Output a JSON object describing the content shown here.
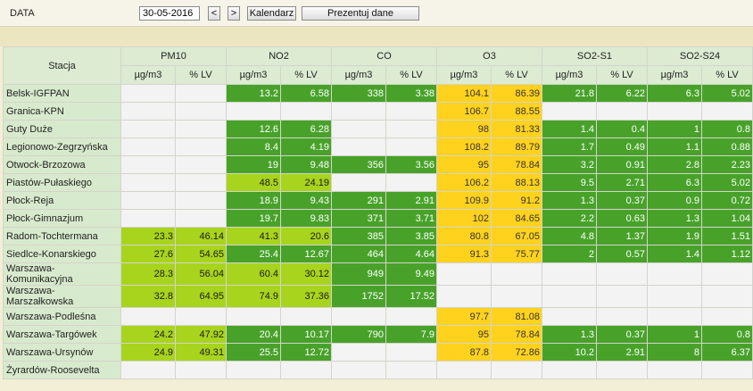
{
  "toolbar": {
    "date_label": "DATA",
    "date_value": "30-05-2016",
    "prev_label": "<",
    "next_label": ">",
    "calendar_label": "Kalendarz",
    "show_label": "Prezentuj dane"
  },
  "table": {
    "station_header": "Stacja",
    "pollutants": [
      "PM10",
      "NO2",
      "CO",
      "O3",
      "SO2-S1",
      "SO2-S24"
    ],
    "units": [
      "µg/m3",
      "% LV"
    ],
    "rows": [
      {
        "name": "Belsk-IGFPAN",
        "cells": [
          [
            "",
            ""
          ],
          [
            "13.2",
            "6.58"
          ],
          [
            "338",
            "3.38"
          ],
          [
            "104.1",
            "86.39"
          ],
          [
            "21.8",
            "6.22"
          ],
          [
            "6.3",
            "5.02"
          ]
        ]
      },
      {
        "name": "Granica-KPN",
        "cells": [
          [
            "",
            ""
          ],
          [
            "",
            ""
          ],
          [
            "",
            ""
          ],
          [
            "106.7",
            "88.55"
          ],
          [
            "",
            ""
          ],
          [
            "",
            ""
          ]
        ]
      },
      {
        "name": "Guty Duże",
        "cells": [
          [
            "",
            ""
          ],
          [
            "12.6",
            "6.28"
          ],
          [
            "",
            ""
          ],
          [
            "98",
            "81.33"
          ],
          [
            "1.4",
            "0.4"
          ],
          [
            "1",
            "0.8"
          ]
        ]
      },
      {
        "name": "Legionowo-Zegrzyńska",
        "cells": [
          [
            "",
            ""
          ],
          [
            "8.4",
            "4.19"
          ],
          [
            "",
            ""
          ],
          [
            "108.2",
            "89.79"
          ],
          [
            "1.7",
            "0.49"
          ],
          [
            "1.1",
            "0.88"
          ]
        ]
      },
      {
        "name": "Otwock-Brzozowa",
        "cells": [
          [
            "",
            ""
          ],
          [
            "19",
            "9.48"
          ],
          [
            "356",
            "3.56"
          ],
          [
            "95",
            "78.84"
          ],
          [
            "3.2",
            "0.91"
          ],
          [
            "2.8",
            "2.23"
          ]
        ]
      },
      {
        "name": "Piastów-Pułaskiego",
        "cells": [
          [
            "",
            ""
          ],
          [
            "48.5",
            "24.19"
          ],
          [
            "",
            ""
          ],
          [
            "106.2",
            "88.13"
          ],
          [
            "9.5",
            "2.71"
          ],
          [
            "6.3",
            "5.02"
          ]
        ]
      },
      {
        "name": "Płock-Reja",
        "cells": [
          [
            "",
            ""
          ],
          [
            "18.9",
            "9.43"
          ],
          [
            "291",
            "2.91"
          ],
          [
            "109.9",
            "91.2"
          ],
          [
            "1.3",
            "0.37"
          ],
          [
            "0.9",
            "0.72"
          ]
        ]
      },
      {
        "name": "Płock-Gimnazjum",
        "cells": [
          [
            "",
            ""
          ],
          [
            "19.7",
            "9.83"
          ],
          [
            "371",
            "3.71"
          ],
          [
            "102",
            "84.65"
          ],
          [
            "2.2",
            "0.63"
          ],
          [
            "1.3",
            "1.04"
          ]
        ]
      },
      {
        "name": "Radom-Tochtermana",
        "cells": [
          [
            "23.3",
            "46.14"
          ],
          [
            "41.3",
            "20.6"
          ],
          [
            "385",
            "3.85"
          ],
          [
            "80.8",
            "67.05"
          ],
          [
            "4.8",
            "1.37"
          ],
          [
            "1.9",
            "1.51"
          ]
        ]
      },
      {
        "name": "Siedlce-Konarskiego",
        "cells": [
          [
            "27.6",
            "54.65"
          ],
          [
            "25.4",
            "12.67"
          ],
          [
            "464",
            "4.64"
          ],
          [
            "91.3",
            "75.77"
          ],
          [
            "2",
            "0.57"
          ],
          [
            "1.4",
            "1.12"
          ]
        ]
      },
      {
        "name": "Warszawa-Komunikacyjna",
        "cells": [
          [
            "28.3",
            "56.04"
          ],
          [
            "60.4",
            "30.12"
          ],
          [
            "949",
            "9.49"
          ],
          [
            "",
            ""
          ],
          [
            "",
            ""
          ],
          [
            "",
            ""
          ]
        ]
      },
      {
        "name": "Warszawa-Marszałkowska",
        "cells": [
          [
            "32.8",
            "64.95"
          ],
          [
            "74.9",
            "37.36"
          ],
          [
            "1752",
            "17.52"
          ],
          [
            "",
            ""
          ],
          [
            "",
            ""
          ],
          [
            "",
            ""
          ]
        ]
      },
      {
        "name": "Warszawa-Podleśna",
        "cells": [
          [
            "",
            ""
          ],
          [
            "",
            ""
          ],
          [
            "",
            ""
          ],
          [
            "97.7",
            "81.08"
          ],
          [
            "",
            ""
          ],
          [
            "",
            ""
          ]
        ]
      },
      {
        "name": "Warszawa-Targówek",
        "cells": [
          [
            "24.2",
            "47.92"
          ],
          [
            "20.4",
            "10.17"
          ],
          [
            "790",
            "7.9"
          ],
          [
            "95",
            "78.84"
          ],
          [
            "1.3",
            "0.37"
          ],
          [
            "1",
            "0.8"
          ]
        ]
      },
      {
        "name": "Warszawa-Ursynów",
        "cells": [
          [
            "24.9",
            "49.31"
          ],
          [
            "25.5",
            "12.72"
          ],
          [
            "",
            ""
          ],
          [
            "87.8",
            "72.86"
          ],
          [
            "10.2",
            "2.91"
          ],
          [
            "8",
            "6.37"
          ]
        ]
      },
      {
        "name": "Żyrardów-Roosevelta",
        "cells": [
          [
            "",
            ""
          ],
          [
            "",
            ""
          ],
          [
            "",
            ""
          ],
          [
            "",
            ""
          ],
          [
            "",
            ""
          ],
          [
            "",
            ""
          ]
        ]
      }
    ],
    "colors": {
      "green": "#48a22a",
      "light_green": "#a8d41e",
      "yellow": "#ffd21e",
      "empty": "#f3f3f3",
      "header": "#dcebd2"
    }
  }
}
